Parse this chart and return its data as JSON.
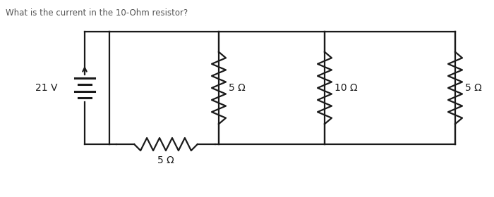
{
  "title": "What is the current in the 10-Ohm resistor?",
  "title_fontsize": 8.5,
  "title_color": "#555555",
  "bg_color": "#ffffff",
  "line_color": "#1a1a1a",
  "line_width": 1.6,
  "battery_label": "21 V",
  "res_labels": [
    "5 Ω",
    "5 Ω",
    "10 Ω",
    "5 Ω"
  ],
  "fig_w": 7.0,
  "fig_h": 2.8,
  "dpi": 100
}
